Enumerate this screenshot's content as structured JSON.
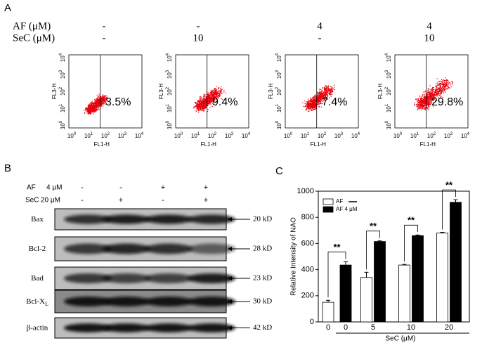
{
  "panel_a": {
    "label": "A",
    "rows": [
      {
        "name": "AF (μM)",
        "values": [
          "-",
          "-",
          "4",
          "4"
        ]
      },
      {
        "name": "SeC (μM)",
        "values": [
          "-",
          "10",
          "-",
          "10"
        ]
      }
    ],
    "plots": [
      {
        "percent": "3.5%"
      },
      {
        "percent": "9.4%"
      },
      {
        "percent": "7.4%"
      },
      {
        "percent": "29.8%"
      }
    ],
    "y_label": "FL3-H",
    "x_label": "FL1-H",
    "tick_base": "10",
    "tick_exponents": [
      "0",
      "1",
      "2",
      "3",
      "4"
    ]
  },
  "panel_b": {
    "label": "B",
    "rows": [
      {
        "name": "AF",
        "dose": "4 μM",
        "values": [
          "-",
          "-",
          "+",
          "+"
        ]
      },
      {
        "name": "SeC",
        "dose": "20 μM",
        "values": [
          "-",
          "+",
          "-",
          "+"
        ]
      }
    ],
    "blots": [
      {
        "protein": "Bax",
        "size": "20 kD"
      },
      {
        "protein": "Bcl-2",
        "size": "28 kD"
      },
      {
        "protein": "Bad",
        "size": "23 kD"
      },
      {
        "protein": "Bcl-X",
        "subscript": "L",
        "size": "30 kD"
      },
      {
        "protein": "β-actin",
        "size": "42 kD"
      }
    ]
  },
  "chart_data": {
    "type": "bar",
    "panel_label": "C",
    "y_label": "Relative Intensity of NAO",
    "x_label": "SeC (μM)",
    "categories": [
      "0",
      "0",
      "5",
      "10",
      "20"
    ],
    "series": [
      {
        "name": "AF",
        "color": "#ffffff",
        "values": [
          150,
          null,
          340,
          435,
          680
        ],
        "errors": [
          15,
          null,
          40,
          5,
          5
        ]
      },
      {
        "name": "AF 4 μM",
        "color": "#000000",
        "values": [
          null,
          435,
          615,
          660,
          915
        ],
        "errors": [
          null,
          25,
          5,
          5,
          20
        ]
      }
    ],
    "annotations": [
      "**",
      "**",
      "**",
      "**"
    ],
    "ylim": [
      0,
      1000
    ],
    "yticks": [
      0,
      200,
      400,
      600,
      800,
      1000
    ],
    "legend": "top-left"
  }
}
